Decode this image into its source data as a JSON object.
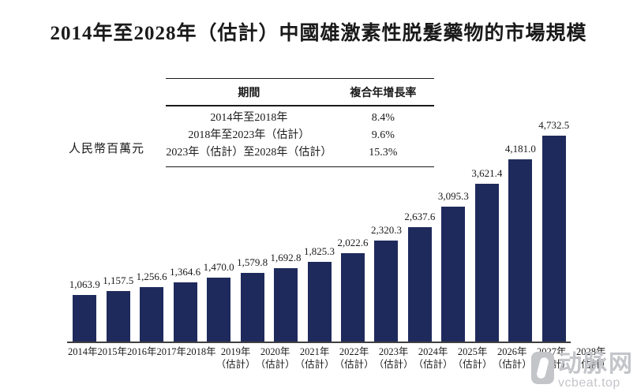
{
  "title": "2014年至2028年（估計）中國雄激素性脱髮藥物的市場規模",
  "cagr_table": {
    "col_period": "期間",
    "col_cagr": "複合年增長率",
    "rows": [
      {
        "period": "2014年至2018年",
        "cagr": "8.4%"
      },
      {
        "period": "2018年至2023年（估計）",
        "cagr": "9.6%"
      },
      {
        "period": "2023年（估計）至2028年（估計）",
        "cagr": "15.3%"
      }
    ]
  },
  "chart_data": {
    "type": "bar",
    "title": "2014年至2028年（估計）中國雄激素性脱髮藥物的市場規模",
    "ylabel": "人民幣百萬元",
    "ylim": [
      0,
      4800
    ],
    "grid": false,
    "legend": false,
    "bar_color": "#1f2a5c",
    "categories": [
      "2014年",
      "2015年",
      "2016年",
      "2017年",
      "2018年",
      "2019年（估計）",
      "2020年（估計）",
      "2021年（估計）",
      "2022年（估計）",
      "2023年（估計）",
      "2024年（估計）",
      "2025年（估計）",
      "2026年（估計）",
      "2027年（估計）",
      "2028年（估計）"
    ],
    "values": [
      1063.9,
      1157.5,
      1256.6,
      1364.6,
      1470.0,
      1579.8,
      1692.8,
      1825.3,
      2022.6,
      2320.3,
      2637.6,
      3095.3,
      3621.4,
      4181.0,
      4732.5
    ],
    "labels": [
      "1,063.9",
      "1,157.5",
      "1,256.6",
      "1,364.6",
      "1,470.0",
      "1,579.8",
      "1,692.8",
      "1,825.3",
      "2,022.6",
      "2,320.3",
      "2,637.6",
      "3,095.3",
      "3,621.4",
      "4,181.0",
      "4,732.5"
    ]
  },
  "watermark": {
    "brand": "动脉网",
    "site": "vcbeat.top"
  }
}
